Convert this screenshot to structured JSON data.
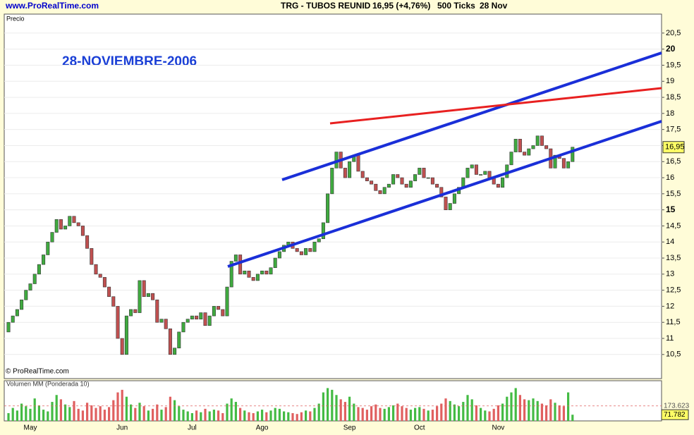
{
  "header": {
    "site": "www.ProRealTime.com",
    "ticker": "TRG - TUBOS REUNID",
    "quote": "16,95 (+4,76%)",
    "ticks": "500 Ticks",
    "date": "28 Nov"
  },
  "chart_data": [
    {
      "type": "candlestick",
      "panel_title": "Precio",
      "annotation": "28-NOVIEMBRE-2006",
      "copyright": "© ProRealTime.com",
      "categories": [
        null,
        null,
        null,
        null,
        null,
        "May",
        null,
        null,
        null,
        null,
        null,
        null,
        null,
        null,
        null,
        null,
        null,
        null,
        null,
        null,
        null,
        null,
        null,
        null,
        null,
        null,
        "Jun",
        null,
        null,
        null,
        null,
        null,
        null,
        null,
        null,
        null,
        null,
        null,
        null,
        null,
        null,
        null,
        "Jul",
        null,
        null,
        null,
        null,
        null,
        null,
        null,
        null,
        null,
        null,
        null,
        null,
        null,
        null,
        null,
        "Ago",
        null,
        null,
        null,
        null,
        null,
        null,
        null,
        null,
        null,
        null,
        null,
        null,
        null,
        null,
        null,
        null,
        null,
        null,
        null,
        "Sep",
        null,
        null,
        null,
        null,
        null,
        null,
        null,
        null,
        null,
        null,
        null,
        null,
        null,
        null,
        null,
        "Oct",
        null,
        null,
        null,
        null,
        null,
        null,
        null,
        null,
        null,
        null,
        null,
        null,
        null,
        null,
        null,
        null,
        null,
        "Nov",
        null,
        null,
        null,
        null,
        null,
        null,
        null,
        null,
        null,
        null,
        null,
        null,
        null,
        null,
        null,
        null,
        null
      ],
      "open": [
        11.2,
        11.5,
        11.7,
        11.9,
        12.2,
        12.5,
        12.7,
        13.0,
        13.3,
        13.6,
        14.0,
        14.3,
        14.7,
        14.4,
        14.5,
        14.8,
        14.6,
        14.5,
        14.2,
        13.8,
        13.3,
        13.0,
        12.9,
        12.6,
        12.3,
        12.0,
        11.0,
        10.5,
        11.7,
        11.9,
        11.8,
        12.8,
        12.3,
        12.4,
        12.2,
        11.5,
        11.6,
        11.3,
        10.5,
        10.7,
        11.2,
        11.5,
        11.6,
        11.7,
        11.6,
        11.8,
        11.4,
        11.7,
        12.0,
        11.9,
        11.7,
        12.6,
        13.4,
        13.6,
        13.0,
        13.1,
        12.9,
        12.8,
        13.0,
        13.1,
        13.0,
        13.2,
        13.5,
        13.7,
        13.9,
        14.0,
        13.8,
        13.7,
        13.6,
        13.8,
        13.7,
        14.0,
        14.1,
        14.6,
        15.5,
        16.3,
        16.8,
        16.3,
        16.0,
        16.5,
        16.7,
        16.2,
        16.0,
        15.9,
        15.8,
        15.6,
        15.5,
        15.7,
        15.8,
        16.1,
        16.0,
        15.8,
        15.7,
        15.9,
        16.1,
        16.3,
        16.0,
        16.0,
        15.8,
        15.7,
        15.4,
        15.0,
        15.2,
        15.5,
        15.7,
        16.0,
        16.3,
        16.4,
        16.1,
        16.1,
        16.2,
        16.0,
        15.8,
        15.7,
        16.0,
        16.4,
        16.8,
        17.2,
        16.8,
        16.7,
        16.9,
        17.0,
        17.3,
        17.0,
        16.9,
        16.3,
        16.7,
        16.6,
        16.3,
        16.5
      ],
      "close": [
        11.5,
        11.7,
        11.9,
        12.2,
        12.5,
        12.7,
        13.0,
        13.3,
        13.6,
        14.0,
        14.3,
        14.7,
        14.4,
        14.5,
        14.8,
        14.6,
        14.5,
        14.2,
        13.8,
        13.3,
        13.0,
        12.9,
        12.6,
        12.3,
        12.0,
        11.0,
        10.5,
        11.7,
        11.9,
        11.8,
        12.8,
        12.3,
        12.4,
        12.2,
        11.5,
        11.6,
        11.3,
        10.5,
        10.7,
        11.2,
        11.5,
        11.6,
        11.7,
        11.6,
        11.8,
        11.4,
        11.7,
        12.0,
        11.9,
        11.7,
        12.6,
        13.4,
        13.6,
        13.0,
        13.1,
        12.9,
        12.8,
        13.0,
        13.1,
        13.0,
        13.2,
        13.5,
        13.7,
        13.9,
        14.0,
        13.8,
        13.7,
        13.6,
        13.8,
        13.7,
        14.0,
        14.1,
        14.6,
        15.5,
        16.3,
        16.8,
        16.3,
        16.0,
        16.5,
        16.7,
        16.2,
        16.0,
        15.9,
        15.8,
        15.6,
        15.5,
        15.7,
        15.8,
        16.1,
        16.0,
        15.8,
        15.7,
        15.9,
        16.1,
        16.3,
        16.0,
        16.0,
        15.8,
        15.7,
        15.4,
        15.0,
        15.2,
        15.5,
        15.7,
        16.0,
        16.3,
        16.4,
        16.1,
        16.1,
        16.2,
        16.0,
        15.8,
        15.7,
        16.0,
        16.4,
        16.8,
        17.2,
        16.8,
        16.7,
        16.9,
        17.0,
        17.3,
        17.0,
        16.9,
        16.3,
        16.7,
        16.6,
        16.3,
        16.5,
        16.95
      ],
      "up_color": "#3faa3f",
      "down_color": "#c05050",
      "ylim": [
        9.75,
        21.09
      ],
      "yticks": [
        {
          "value": 10.5,
          "label": "10,5"
        },
        11,
        {
          "value": 11.5,
          "label": "11,5"
        },
        12,
        {
          "value": 12.5,
          "label": "12,5"
        },
        13,
        {
          "value": 13.5,
          "label": "13,5"
        },
        14,
        {
          "value": 14.5,
          "label": "14,5"
        },
        15,
        {
          "value": 15.5,
          "label": "15,5"
        },
        16,
        {
          "value": 16.5,
          "label": "16,5"
        },
        17,
        {
          "value": 17.5,
          "label": "17,5"
        },
        18,
        {
          "value": 18.5,
          "label": "18,5"
        },
        19,
        {
          "value": 19.5,
          "label": "19,5"
        },
        20,
        {
          "value": 20.5,
          "label": "20,5"
        }
      ],
      "last_price": {
        "value": 16.95,
        "label": "16,95"
      },
      "grid": true
    },
    {
      "type": "volume",
      "panel_title": "Volumen MM (Ponderada 10)",
      "values": [
        90000,
        150000,
        120000,
        200000,
        170000,
        140000,
        260000,
        180000,
        130000,
        110000,
        220000,
        300000,
        250000,
        190000,
        160000,
        230000,
        140000,
        120000,
        210000,
        180000,
        150000,
        170000,
        130000,
        160000,
        240000,
        330000,
        360000,
        280000,
        190000,
        150000,
        210000,
        170000,
        120000,
        140000,
        190000,
        130000,
        160000,
        280000,
        240000,
        170000,
        130000,
        110000,
        90000,
        120000,
        100000,
        140000,
        110000,
        130000,
        120000,
        90000,
        200000,
        260000,
        220000,
        150000,
        120000,
        100000,
        90000,
        110000,
        130000,
        100000,
        120000,
        150000,
        140000,
        110000,
        100000,
        90000,
        80000,
        100000,
        120000,
        110000,
        150000,
        200000,
        330000,
        380000,
        360000,
        300000,
        250000,
        220000,
        280000,
        200000,
        160000,
        150000,
        130000,
        170000,
        190000,
        150000,
        140000,
        160000,
        180000,
        200000,
        170000,
        150000,
        130000,
        150000,
        160000,
        140000,
        120000,
        130000,
        170000,
        200000,
        260000,
        230000,
        190000,
        170000,
        220000,
        300000,
        250000,
        180000,
        150000,
        120000,
        110000,
        140000,
        180000,
        200000,
        280000,
        330000,
        380000,
        300000,
        250000,
        240000,
        260000,
        230000,
        200000,
        180000,
        250000,
        210000,
        180000,
        170000,
        330000,
        71782
      ],
      "ylim": [
        0,
        400000
      ],
      "average": {
        "value": 173623,
        "label": "173.623"
      },
      "last": {
        "value": 71782,
        "label": "71.782"
      }
    }
  ]
}
